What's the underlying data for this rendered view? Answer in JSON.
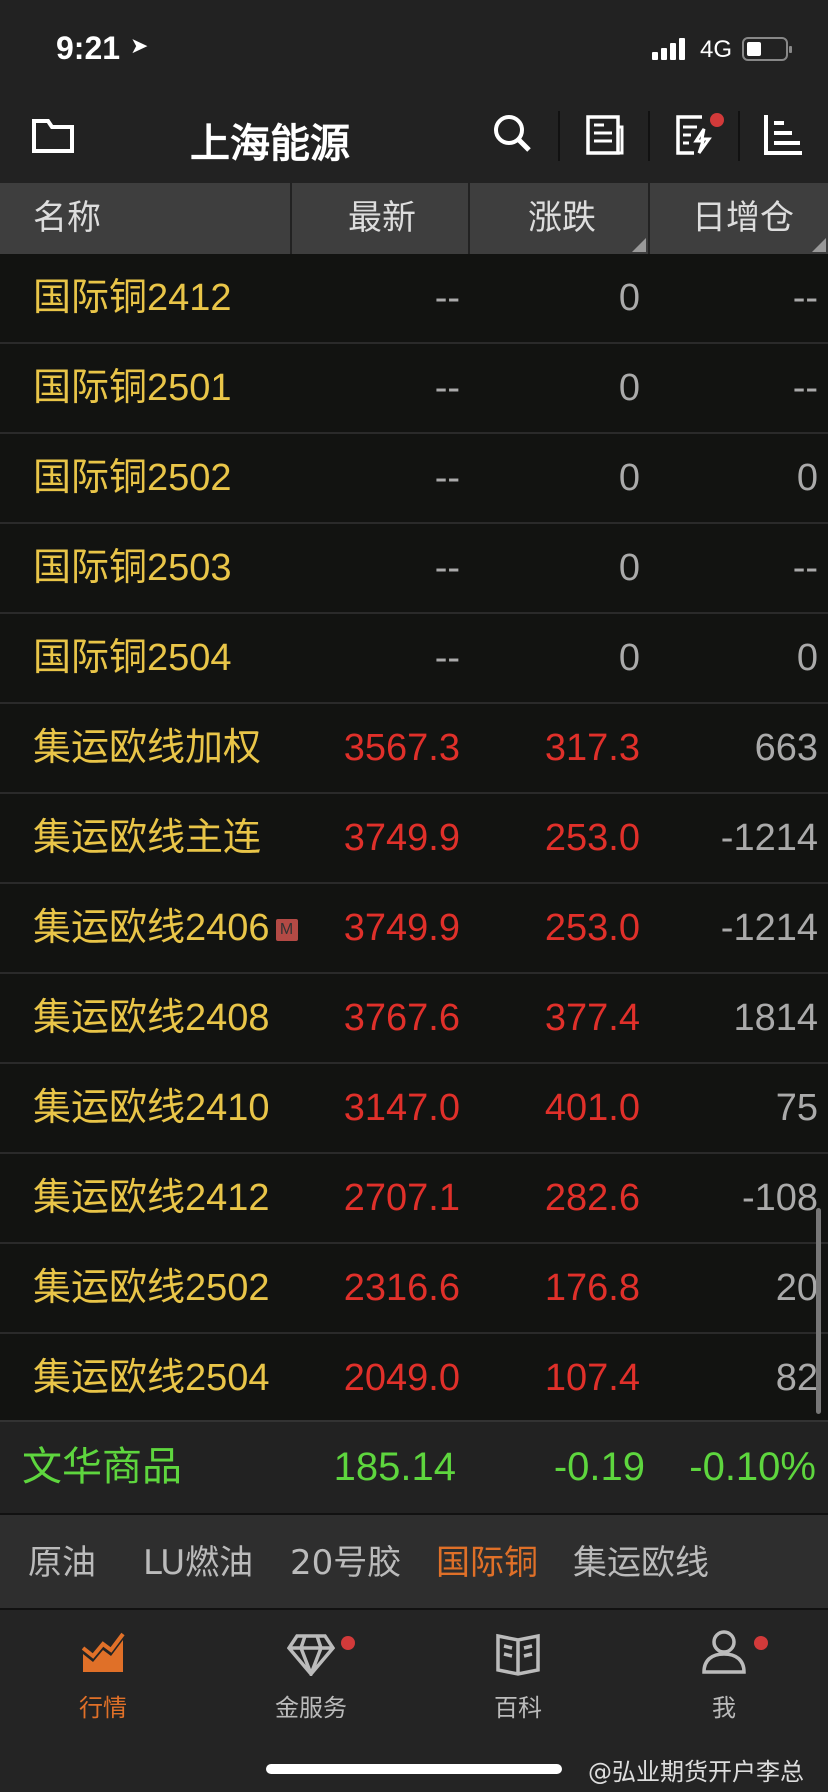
{
  "status_bar": {
    "time": "9:21",
    "network": "4G"
  },
  "top_bar": {
    "title": "上海能源",
    "icons": [
      "folder-icon",
      "search-icon",
      "news-icon",
      "flash-report-icon",
      "ranking-icon"
    ]
  },
  "table": {
    "headers": [
      "名称",
      "最新",
      "涨跌",
      "日增仓"
    ],
    "rows": [
      {
        "name": "国际铜2412",
        "latest": "--",
        "change": "0",
        "oi": "--",
        "color": "neutral"
      },
      {
        "name": "国际铜2501",
        "latest": "--",
        "change": "0",
        "oi": "--",
        "color": "neutral"
      },
      {
        "name": "国际铜2502",
        "latest": "--",
        "change": "0",
        "oi": "0",
        "color": "neutral"
      },
      {
        "name": "国际铜2503",
        "latest": "--",
        "change": "0",
        "oi": "--",
        "color": "neutral"
      },
      {
        "name": "国际铜2504",
        "latest": "--",
        "change": "0",
        "oi": "0",
        "color": "neutral"
      },
      {
        "name": "集运欧线加权",
        "latest": "3567.3",
        "change": "317.3",
        "oi": "663",
        "color": "up"
      },
      {
        "name": "集运欧线主连",
        "latest": "3749.9",
        "change": "253.0",
        "oi": "-1214",
        "color": "up"
      },
      {
        "name": "集运欧线2406",
        "badge": "M",
        "latest": "3749.9",
        "change": "253.0",
        "oi": "-1214",
        "color": "up"
      },
      {
        "name": "集运欧线2408",
        "latest": "3767.6",
        "change": "377.4",
        "oi": "1814",
        "color": "up"
      },
      {
        "name": "集运欧线2410",
        "latest": "3147.0",
        "change": "401.0",
        "oi": "75",
        "color": "up"
      },
      {
        "name": "集运欧线2412",
        "latest": "2707.1",
        "change": "282.6",
        "oi": "-108",
        "color": "up"
      },
      {
        "name": "集运欧线2502",
        "latest": "2316.6",
        "change": "176.8",
        "oi": "20",
        "color": "up"
      },
      {
        "name": "集运欧线2504",
        "latest": "2049.0",
        "change": "107.4",
        "oi": "82",
        "color": "up"
      }
    ]
  },
  "summary": {
    "name": "文华商品",
    "value": "185.14",
    "change": "-0.19",
    "pct": "-0.10%"
  },
  "category_tabs": [
    {
      "label": "原油"
    },
    {
      "label": "LU燃油"
    },
    {
      "label": "20号胶"
    },
    {
      "label": "国际铜",
      "active": true
    },
    {
      "label": "集运欧线"
    }
  ],
  "bottom_nav": [
    {
      "label": "行情",
      "active": true
    },
    {
      "label": "金服务",
      "dot": true
    },
    {
      "label": "百科"
    },
    {
      "label": "我",
      "dot": true
    }
  ],
  "watermark": "@弘业期货开户李总",
  "colors": {
    "up": "#e0302a",
    "neutral": "#aaaaaa",
    "name": "#e9c548",
    "green": "#5ed63e",
    "accent": "#e07028"
  }
}
